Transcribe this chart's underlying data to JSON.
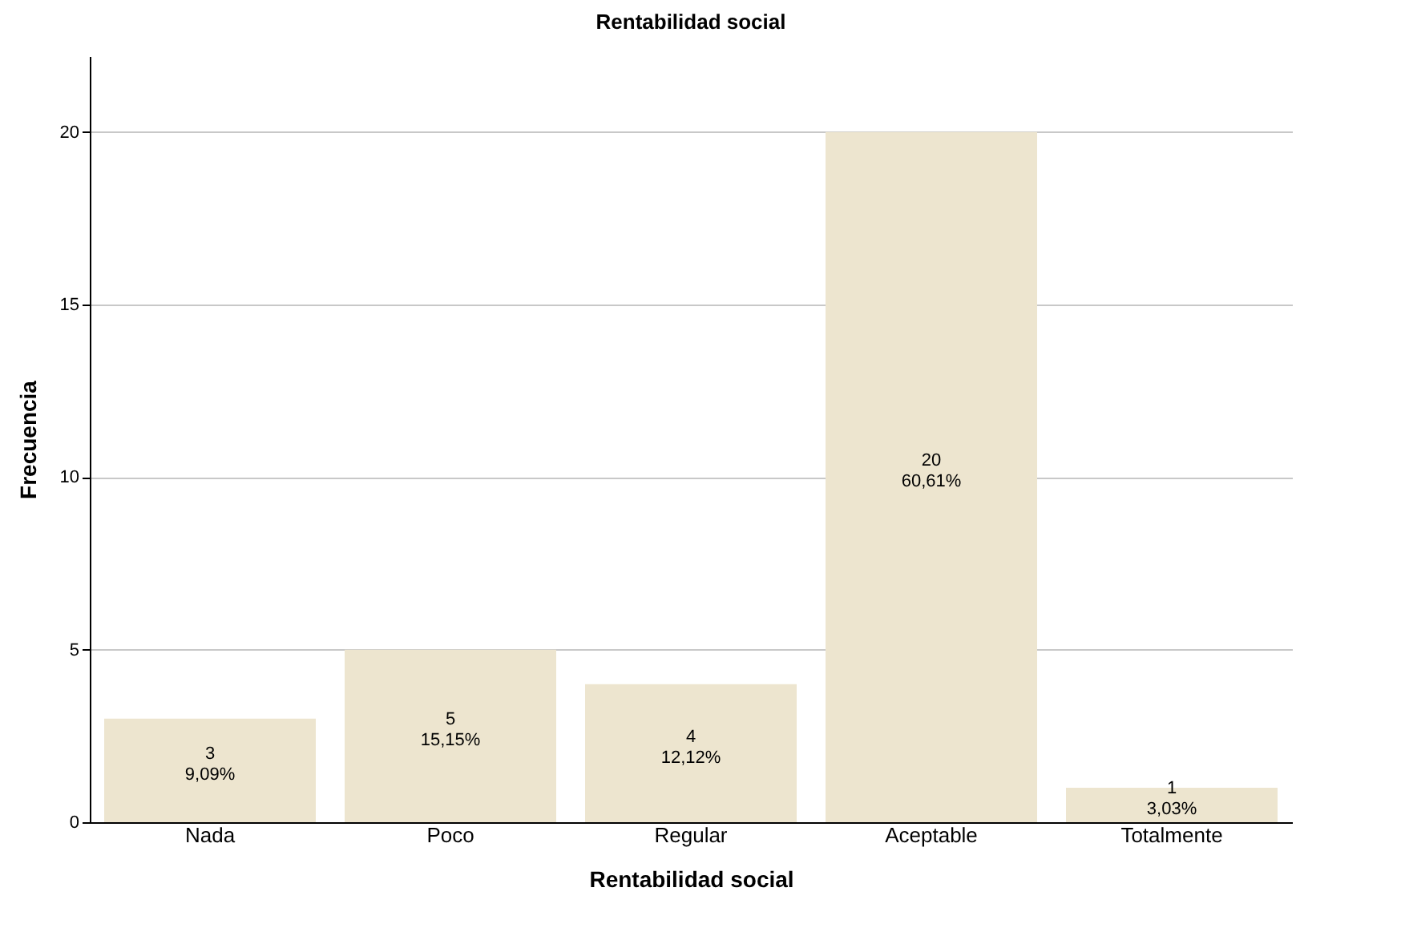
{
  "chart_data": {
    "type": "bar",
    "title": "Rentabilidad social",
    "xlabel": "Rentabilidad social",
    "ylabel": "Frecuencia",
    "categories": [
      "Nada",
      "Poco",
      "Regular",
      "Aceptable",
      "Totalmente"
    ],
    "values": [
      3,
      5,
      4,
      20,
      1
    ],
    "value_labels": [
      "3\n9,09%",
      "5\n15,15%",
      "4\n12,12%",
      "20\n60,61%",
      "1\n3,03%"
    ],
    "color": "#ede5cf",
    "ylim": [
      0,
      22.2
    ],
    "yticks": [
      0,
      5,
      10,
      15,
      20
    ],
    "grid": "y"
  }
}
